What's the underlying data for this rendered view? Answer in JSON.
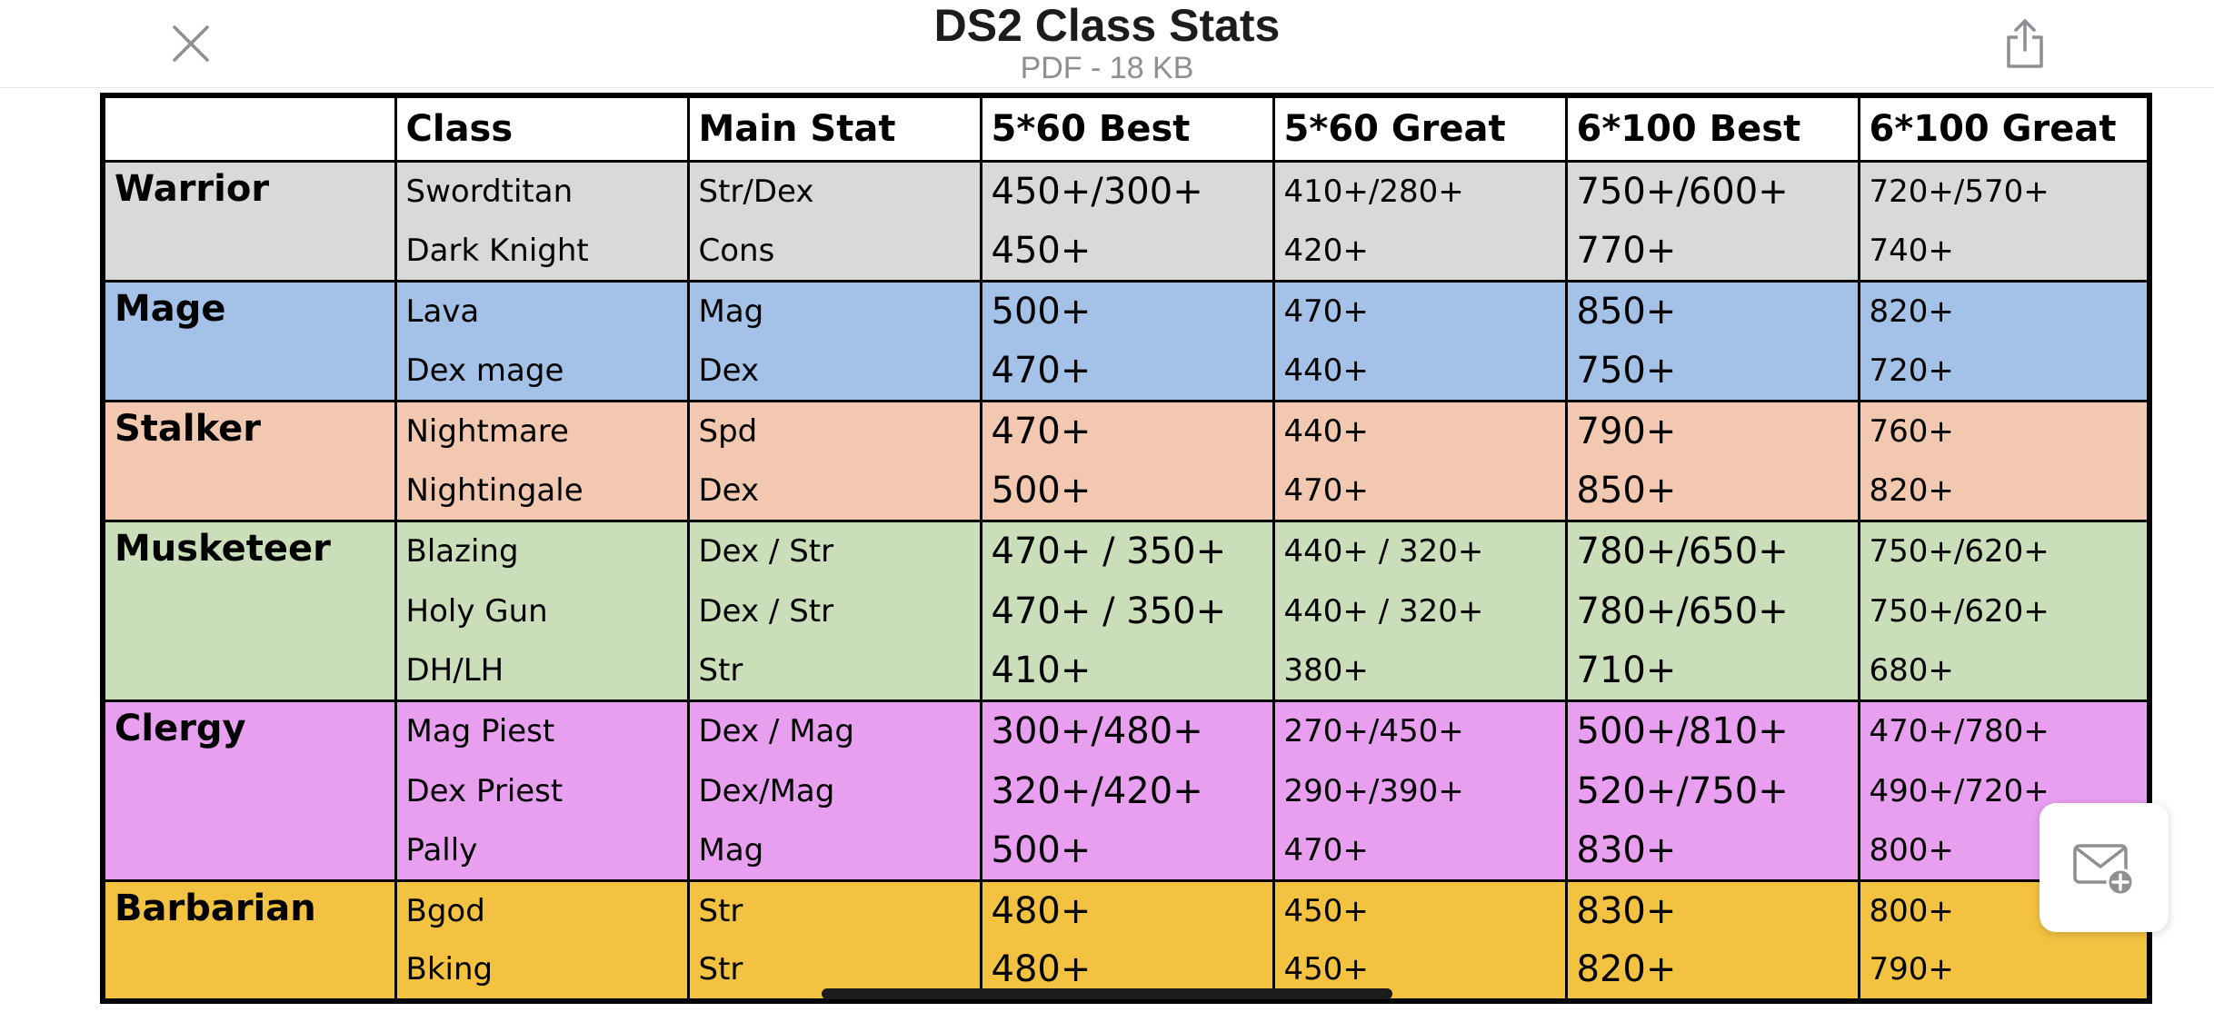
{
  "header": {
    "title": "DS2 Class Stats",
    "subtitle": "PDF - 18 KB",
    "close_icon": "close-icon",
    "share_icon": "share-icon"
  },
  "table": {
    "columns": [
      "",
      "Class",
      "Main Stat",
      "5*60 Best",
      "5*60 Great",
      "6*100 Best",
      "6*100 Great"
    ],
    "groups": [
      {
        "name": "Warrior",
        "color": "#d9d9d9",
        "rows": [
          [
            "Swordtitan",
            "Str/Dex",
            "450+/300+",
            "410+/280+",
            "750+/600+",
            "720+/570+"
          ],
          [
            "Dark Knight",
            "Cons",
            "450+",
            "420+",
            "770+",
            "740+"
          ]
        ]
      },
      {
        "name": "Mage",
        "color": "#a4c2e7",
        "rows": [
          [
            "Lava",
            "Mag",
            "500+",
            "470+",
            "850+",
            "820+"
          ],
          [
            "Dex mage",
            "Dex",
            "470+",
            "440+",
            "750+",
            "720+"
          ]
        ]
      },
      {
        "name": "Stalker",
        "color": "#f2c9b0",
        "rows": [
          [
            "Nightmare",
            "Spd",
            "470+",
            "440+",
            "790+",
            "760+"
          ],
          [
            "Nightingale",
            "Dex",
            "500+",
            "470+",
            "850+",
            "820+"
          ]
        ]
      },
      {
        "name": "Musketeer",
        "color": "#cadfb9",
        "rows": [
          [
            "Blazing",
            "Dex / Str",
            "470+ / 350+",
            "440+ / 320+",
            "780+/650+",
            "750+/620+"
          ],
          [
            "Holy Gun",
            "Dex / Str",
            "470+ / 350+",
            "440+ / 320+",
            "780+/650+",
            "750+/620+"
          ],
          [
            "DH/LH",
            "Str",
            "410+",
            "380+",
            "710+",
            "680+"
          ]
        ]
      },
      {
        "name": "Clergy",
        "color": "#e89ff0",
        "rows": [
          [
            "Mag Piest",
            "Dex / Mag",
            "300+/480+",
            "270+/450+",
            "500+/810+",
            "470+/780+"
          ],
          [
            "Dex Priest",
            "Dex/Mag",
            "320+/420+",
            "290+/390+",
            "520+/750+",
            "490+/720+"
          ],
          [
            "Pally",
            "Mag",
            "500+",
            "470+",
            "830+",
            "800+"
          ]
        ]
      },
      {
        "name": "Barbarian",
        "color": "#f3c241",
        "rows": [
          [
            "Bgod",
            "Str",
            "480+",
            "450+",
            "830+",
            "800+"
          ],
          [
            "Bking",
            "Str",
            "480+",
            "450+",
            "820+",
            "790+"
          ]
        ]
      }
    ]
  },
  "floating": {
    "mail_icon": "mail-add-icon"
  }
}
